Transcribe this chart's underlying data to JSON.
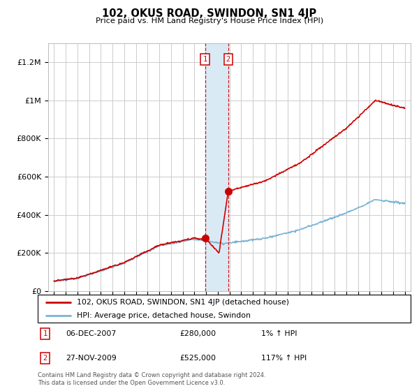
{
  "title": "102, OKUS ROAD, SWINDON, SN1 4JP",
  "subtitle": "Price paid vs. HM Land Registry's House Price Index (HPI)",
  "footer": "Contains HM Land Registry data © Crown copyright and database right 2024.\nThis data is licensed under the Open Government Licence v3.0.",
  "legend_line1": "102, OKUS ROAD, SWINDON, SN1 4JP (detached house)",
  "legend_line2": "HPI: Average price, detached house, Swindon",
  "transaction1_label": "1",
  "transaction1_date": "06-DEC-2007",
  "transaction1_price": "£280,000",
  "transaction1_hpi": "1% ↑ HPI",
  "transaction1_year": 2007.92,
  "transaction1_value": 280000,
  "transaction2_label": "2",
  "transaction2_date": "27-NOV-2009",
  "transaction2_price": "£525,000",
  "transaction2_hpi": "117% ↑ HPI",
  "transaction2_year": 2009.9,
  "transaction2_value": 525000,
  "red_line_color": "#cc0000",
  "blue_line_color": "#7ab3d4",
  "marker_box_color": "#cc0000",
  "shaded_color": "#daeaf5",
  "dashed_color": "#cc0000",
  "grid_color": "#cccccc",
  "ylim": [
    0,
    1300000
  ],
  "yticks": [
    0,
    200000,
    400000,
    600000,
    800000,
    1000000,
    1200000
  ],
  "ytick_labels": [
    "£0",
    "£200K",
    "£400K",
    "£600K",
    "£800K",
    "£1M",
    "£1.2M"
  ],
  "xlim_start": 1994.5,
  "xlim_end": 2025.5,
  "years_start": 1995,
  "years_end": 2025
}
